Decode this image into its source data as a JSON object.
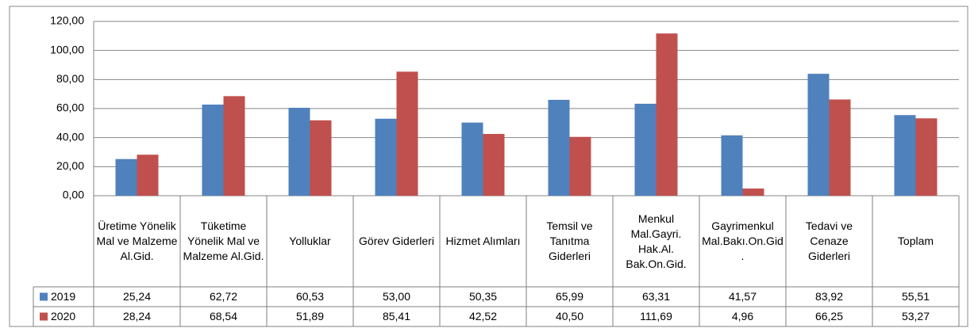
{
  "chart_data": {
    "type": "bar",
    "categories": [
      "Üretime Yönelik Mal ve Malzeme Al.Gid.",
      "Tüketime Yönelik Mal ve Malzeme Al.Gid.",
      "Yolluklar",
      "Görev Giderleri",
      "Hizmet Alımları",
      "Temsil ve Tanıtma Giderleri",
      "Menkul Mal.Gayri. Hak.Al. Bak.On.Gid.",
      "Gayrimenkul Mal.Bakı.On.Gid.",
      "Tedavi ve Cenaze Giderleri",
      "Toplam"
    ],
    "series": [
      {
        "name": "2019",
        "color": "#4f81bd",
        "values": [
          25.24,
          62.72,
          60.53,
          53.0,
          50.35,
          65.99,
          63.31,
          41.57,
          83.92,
          55.51
        ],
        "value_labels": [
          "25,24",
          "62,72",
          "60,53",
          "53,00",
          "50,35",
          "65,99",
          "63,31",
          "41,57",
          "83,92",
          "55,51"
        ]
      },
      {
        "name": "2020",
        "color": "#c0504d",
        "values": [
          28.24,
          68.54,
          51.89,
          85.41,
          42.52,
          40.5,
          111.69,
          4.96,
          66.25,
          53.27
        ],
        "value_labels": [
          "28,24",
          "68,54",
          "51,89",
          "85,41",
          "42,52",
          "40,50",
          "111,69",
          "4,96",
          "66,25",
          "53,27"
        ]
      }
    ],
    "ylim": [
      0,
      120
    ],
    "yticks": [
      {
        "value": 0,
        "label": "0,00"
      },
      {
        "value": 20,
        "label": "20,00"
      },
      {
        "value": 40,
        "label": "40,00"
      },
      {
        "value": 60,
        "label": "60,00"
      },
      {
        "value": 80,
        "label": "80,00"
      },
      {
        "value": 100,
        "label": "100,00"
      },
      {
        "value": 120,
        "label": "120,00"
      }
    ],
    "grid": true
  }
}
